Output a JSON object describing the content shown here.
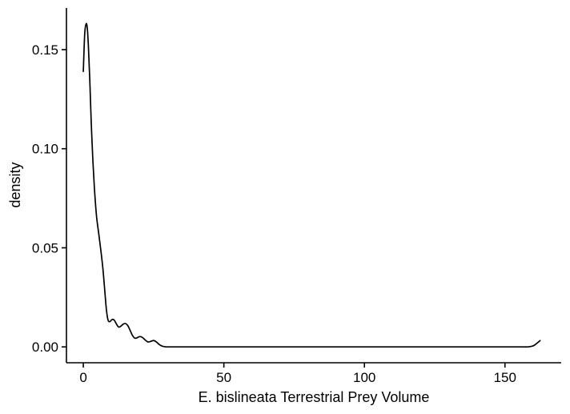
{
  "chart_data": {
    "type": "line",
    "title": "",
    "xlabel": "E. bislineata Terrestrial Prey Volume",
    "ylabel": "density",
    "xlim": [
      -6,
      170
    ],
    "ylim": [
      -0.008,
      0.171
    ],
    "x_ticks": [
      0,
      50,
      100,
      150
    ],
    "x_tick_labels": [
      "0",
      "50",
      "100",
      "150"
    ],
    "y_ticks": [
      0.0,
      0.05,
      0.1,
      0.15
    ],
    "y_tick_labels": [
      "0.00",
      "0.05",
      "0.10",
      "0.15"
    ],
    "grid": false,
    "legend": "none",
    "line_color": "#000000",
    "series": [
      {
        "x": [
          0.0,
          0.5,
          1.0,
          1.4,
          1.8,
          2.3,
          2.8,
          3.4,
          4.0,
          4.7,
          5.5,
          6.3,
          7.0,
          7.6,
          8.2,
          8.8,
          9.5,
          10.2,
          11.0,
          11.8,
          12.6,
          13.4,
          14.2,
          15.0,
          15.8,
          16.6,
          17.4,
          18.2,
          19.0,
          20.0,
          21.0,
          22.0,
          23.0,
          24.0,
          25.0,
          26.0,
          27.0,
          28.0,
          29.0,
          30.0,
          35.0,
          50.0,
          80.0,
          110.0,
          140.0,
          155.0,
          158.0,
          159.5,
          160.5,
          161.5,
          162.5
        ],
        "y": [
          0.139,
          0.158,
          0.163,
          0.161,
          0.152,
          0.135,
          0.114,
          0.094,
          0.079,
          0.066,
          0.057,
          0.048,
          0.039,
          0.029,
          0.019,
          0.0135,
          0.0128,
          0.0138,
          0.0135,
          0.0115,
          0.01,
          0.0105,
          0.0115,
          0.0118,
          0.0108,
          0.0085,
          0.006,
          0.0045,
          0.0045,
          0.0052,
          0.0048,
          0.0035,
          0.0025,
          0.0028,
          0.0032,
          0.0025,
          0.0012,
          0.0004,
          0.0001,
          0.0,
          0.0,
          0.0,
          0.0,
          0.0,
          0.0,
          0.0,
          0.0,
          0.0003,
          0.0009,
          0.002,
          0.0032
        ]
      }
    ]
  }
}
